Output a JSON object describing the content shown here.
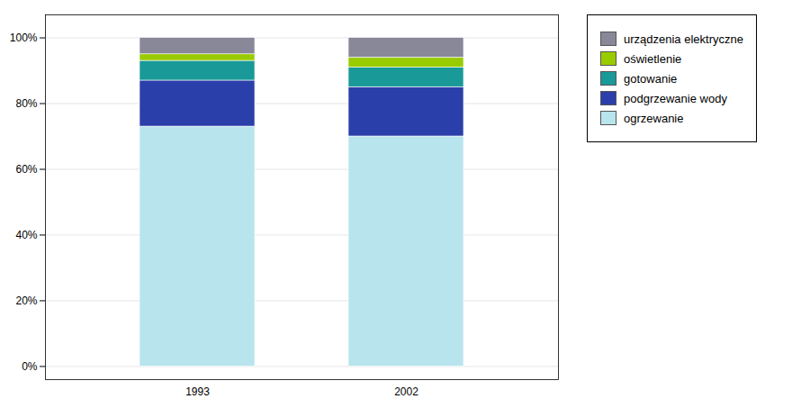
{
  "chart_data": {
    "type": "bar",
    "stacked": true,
    "categories": [
      "1993",
      "2002"
    ],
    "series": [
      {
        "name": "ogrzewanie",
        "values": [
          73,
          70
        ],
        "color": "#b8e4ee"
      },
      {
        "name": "podgrzewanie wody",
        "values": [
          14,
          15
        ],
        "color": "#2b3faa"
      },
      {
        "name": "gotowanie",
        "values": [
          6,
          6
        ],
        "color": "#1a9999"
      },
      {
        "name": "oświetlenie",
        "values": [
          2,
          3
        ],
        "color": "#99cc00"
      },
      {
        "name": "urządzenia elektryczne",
        "values": [
          5,
          6
        ],
        "color": "#888899"
      }
    ],
    "ylim": [
      -4,
      107
    ],
    "yticks": [
      {
        "value": 0,
        "label": "0%"
      },
      {
        "value": 20,
        "label": "20%"
      },
      {
        "value": 40,
        "label": "40%"
      },
      {
        "value": 60,
        "label": "60%"
      },
      {
        "value": 80,
        "label": "80%"
      },
      {
        "value": 100,
        "label": "100%"
      }
    ],
    "grid": true,
    "legend": "right"
  }
}
